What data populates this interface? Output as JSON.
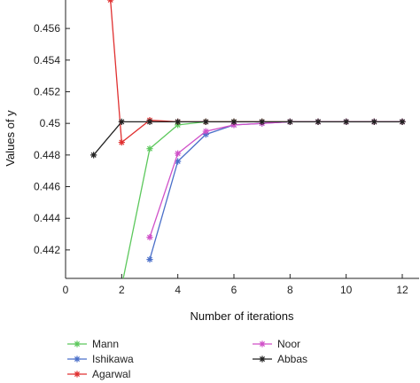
{
  "chart_data": {
    "type": "line",
    "xlabel": "Number of iterations",
    "ylabel": "Values of y",
    "xlim": [
      0,
      12.6
    ],
    "ylim": [
      0.4402,
      0.4578
    ],
    "x_ticks": [
      0,
      2,
      4,
      6,
      8,
      10,
      12
    ],
    "x_tick_labels": [
      "0",
      "2",
      "4",
      "6",
      "8",
      "10",
      "12"
    ],
    "y_ticks": [
      0.442,
      0.444,
      0.446,
      0.448,
      0.45,
      0.452,
      0.454,
      0.456
    ],
    "y_tick_labels": [
      "0.442",
      "0.444",
      "0.446",
      "0.448",
      "0.45",
      "0.452",
      "0.454",
      "0.456"
    ],
    "grid": false,
    "legend_position": "bottom",
    "series": [
      {
        "name": "Mann",
        "color": "#5cc85c",
        "marker": "star",
        "x": [
          2,
          3,
          4,
          5,
          6,
          7,
          8,
          9,
          10,
          11,
          12
        ],
        "y": [
          0.4397,
          0.4484,
          0.4499,
          0.4501,
          0.4501,
          0.4501,
          0.4501,
          0.4501,
          0.4501,
          0.4501,
          0.4501
        ]
      },
      {
        "name": "Ishikawa",
        "color": "#4a6fc9",
        "marker": "star",
        "x": [
          3,
          4,
          5,
          6,
          7,
          8,
          9,
          10,
          11,
          12
        ],
        "y": [
          0.4414,
          0.4476,
          0.4493,
          0.4499,
          0.45,
          0.4501,
          0.4501,
          0.4501,
          0.4501,
          0.4501
        ]
      },
      {
        "name": "Agarwal",
        "color": "#e03030",
        "marker": "star",
        "x": [
          1.6,
          2,
          3,
          4,
          5,
          6,
          7,
          8,
          9,
          10,
          11,
          12
        ],
        "y": [
          0.4578,
          0.4488,
          0.4502,
          0.4501,
          0.4501,
          0.4501,
          0.4501,
          0.4501,
          0.4501,
          0.4501,
          0.4501,
          0.4501
        ]
      },
      {
        "name": "Noor",
        "color": "#d050c8",
        "marker": "star",
        "x": [
          3,
          4,
          5,
          6,
          7,
          8,
          9,
          10,
          11,
          12
        ],
        "y": [
          0.4428,
          0.4481,
          0.4495,
          0.4499,
          0.45,
          0.4501,
          0.4501,
          0.4501,
          0.4501,
          0.4501
        ]
      },
      {
        "name": "Abbas",
        "color": "#222222",
        "marker": "star",
        "x": [
          1,
          2,
          3,
          4,
          5,
          6,
          7,
          8,
          9,
          10,
          11,
          12
        ],
        "y": [
          0.448,
          0.4501,
          0.4501,
          0.4501,
          0.4501,
          0.4501,
          0.4501,
          0.4501,
          0.4501,
          0.4501,
          0.4501,
          0.4501
        ]
      }
    ]
  }
}
